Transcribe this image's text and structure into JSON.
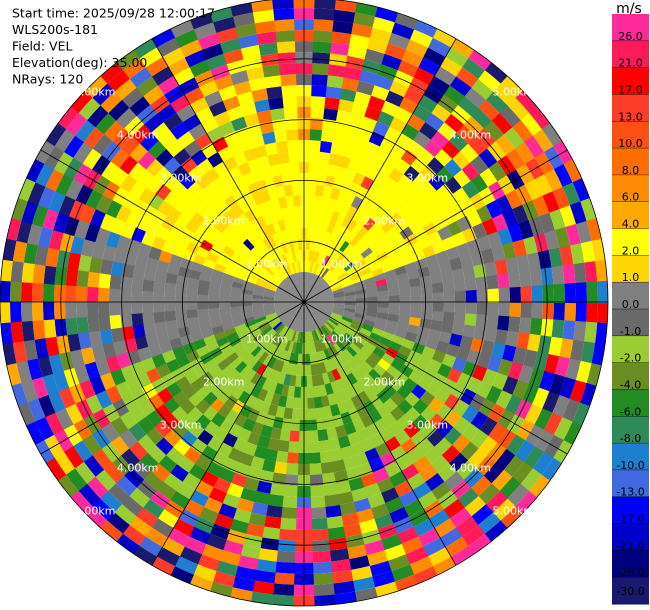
{
  "chart_data": {
    "type": "ppi",
    "header": [
      "Start time: 2025/09/28 12:00:17",
      "WLS200s-181",
      "Field: VEL",
      "Elevation(deg): 35.00",
      "NRays: 120"
    ],
    "range_rings": [
      "1.00km",
      "2.00km",
      "3.00km",
      "4.00km",
      "5.00km"
    ],
    "colorbar": {
      "title": "m/s",
      "colors": [
        "#ff2a9a",
        "#ff1a5a",
        "#ff0000",
        "#ff3c28",
        "#ff5014",
        "#ff6e00",
        "#ff8c00",
        "#ffa800",
        "#ffff00",
        "#ffd700",
        "#808080",
        "#6a6a6a",
        "#9acd32",
        "#6b8e23",
        "#228b22",
        "#2e8b57",
        "#1e7fd0",
        "#4169e1",
        "#0000ff",
        "#0000cd",
        "#000080",
        "#191970"
      ],
      "ticks": [
        {
          "value": 26,
          "label": "26.0"
        },
        {
          "value": 21,
          "label": "21.0"
        },
        {
          "value": 17,
          "label": "17.0"
        },
        {
          "value": 13,
          "label": "13.0"
        },
        {
          "value": 10,
          "label": "10.0"
        },
        {
          "value": 8,
          "label": "8.0"
        },
        {
          "value": 6,
          "label": "6.0"
        },
        {
          "value": 4,
          "label": "4.0"
        },
        {
          "value": 2,
          "label": "2.0"
        },
        {
          "value": 1,
          "label": "1.0"
        },
        {
          "value": 0,
          "label": "0.0"
        },
        {
          "value": -1,
          "label": "-1.0"
        },
        {
          "value": -2,
          "label": "-2.0"
        },
        {
          "value": -4,
          "label": "-4.0"
        },
        {
          "value": -6,
          "label": "-6.0"
        },
        {
          "value": -8,
          "label": "-8.0"
        },
        {
          "value": -10,
          "label": "-10.0"
        },
        {
          "value": -13,
          "label": "-13.0"
        },
        {
          "value": -17,
          "label": "-17.0"
        },
        {
          "value": -21,
          "label": "-21.0"
        },
        {
          "value": -26,
          "label": "-26.0"
        },
        {
          "value": -30,
          "label": "-30.0"
        }
      ]
    }
  }
}
